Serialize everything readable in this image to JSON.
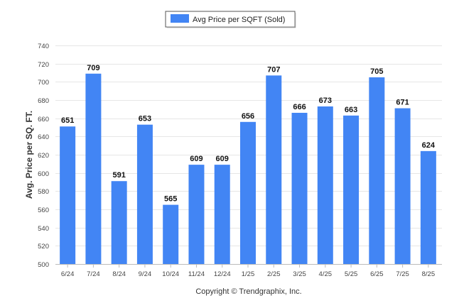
{
  "chart_data": {
    "type": "bar",
    "categories": [
      "6/24",
      "7/24",
      "8/24",
      "9/24",
      "10/24",
      "11/24",
      "12/24",
      "1/25",
      "2/25",
      "3/25",
      "4/25",
      "5/25",
      "6/25",
      "7/25",
      "8/25"
    ],
    "series": [
      {
        "name": "Avg Price per SQFT (Sold)",
        "values": [
          651,
          709,
          591,
          653,
          565,
          609,
          609,
          656,
          707,
          666,
          673,
          663,
          705,
          671,
          624
        ],
        "color": "#4285f4"
      }
    ],
    "title": "",
    "xlabel": "",
    "ylabel": "Avg. Price per SQ. FT.",
    "ylim": [
      500,
      740
    ],
    "yticks": [
      500,
      520,
      540,
      560,
      580,
      600,
      620,
      640,
      660,
      680,
      700,
      720,
      740
    ],
    "grid": true,
    "legend_position": "top-center",
    "data_labels": true
  },
  "footer": {
    "copyright": "Copyright © Trendgraphix, Inc."
  }
}
